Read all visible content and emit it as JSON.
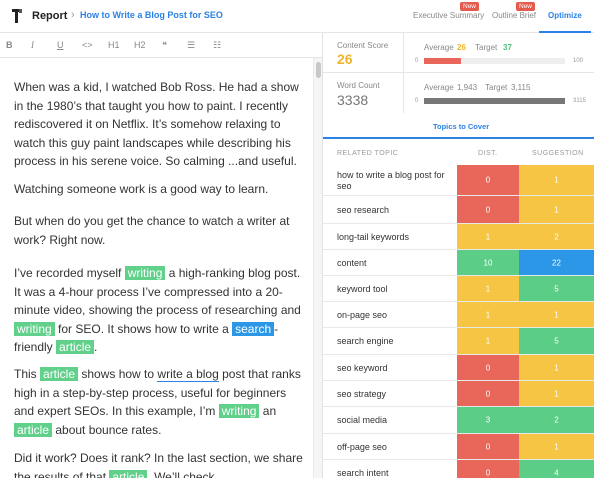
{
  "header": {
    "title": "Report",
    "document_title": "How to Write a Blog Post for SEO",
    "tabs": [
      {
        "label": "Executive Summary",
        "badge": "New"
      },
      {
        "label": "Outline Brief",
        "badge": "New"
      },
      {
        "label": "Optimize",
        "active": true
      }
    ]
  },
  "toolbar": {
    "bold": "B",
    "italic": "I",
    "underline": "U",
    "code": "<>",
    "h1": "H1",
    "h2": "H2",
    "quote": "❝",
    "bullets": "☰",
    "numbers": "☷"
  },
  "editor": {
    "p1": "When was a kid, I watched Bob Ross. He had a show in the 1980’s that taught you how to paint. I recently rediscovered it on Netflix. It’s somehow relaxing to watch this guy paint landscapes while describing his process in his serene voice. So calming ...and useful.",
    "p2": "Watching someone work is a good way to learn.",
    "p3": "But when do you get the chance to watch a writer at work? Right now.",
    "p4": {
      "a": "I’ve recorded myself ",
      "b": "writing",
      "c": " a high-ranking blog post. It was a 4-hour process I’ve compressed into a 20-minute video, showing the process of researching and ",
      "d": "writing",
      "e": " for SEO. It shows how to write a ",
      "f": "search",
      "g": "-friendly ",
      "h": "article",
      "i": "."
    },
    "p5": {
      "a": "This ",
      "b": "article",
      "c": " shows how to ",
      "d": "write a blog",
      "e": " post that ranks high in a step-by-step process, useful for beginners and expert SEOs. In this example, I’m ",
      "f": "writing",
      "g": " an ",
      "h": "article",
      "i": " about bounce rates."
    },
    "p6": {
      "a": "Did it work? Does it rank? In the last section, we share the results of that ",
      "b": "article",
      "c": ". We’ll check"
    }
  },
  "metrics": {
    "content_score": {
      "label": "Content Score",
      "value": "26",
      "average_label": "Average",
      "average": "26",
      "target_label": "Target",
      "target": "37",
      "min": "0",
      "max": "100",
      "fraction": 0.26
    },
    "word_count": {
      "label": "Word Count",
      "value": "3338",
      "average_label": "Average",
      "average": "1,943",
      "target_label": "Target",
      "target": "3,115",
      "min": "0",
      "max": "3115",
      "fraction": 1.0
    }
  },
  "cover_tab": "Topics to Cover",
  "table": {
    "headers": {
      "topic": "RELATED TOPIC",
      "dist": "DIST.",
      "suggestion": "SUGGESTION"
    },
    "rows": [
      {
        "topic": "how to write a blog post for seo",
        "dist": "0",
        "dist_color": "#e8675a",
        "suggestion": "1",
        "sugg_color": "#f7c544"
      },
      {
        "topic": "seo research",
        "dist": "0",
        "dist_color": "#e8675a",
        "suggestion": "1",
        "sugg_color": "#f7c544"
      },
      {
        "topic": "long-tail keywords",
        "dist": "1",
        "dist_color": "#f7c544",
        "suggestion": "2",
        "sugg_color": "#f7c544"
      },
      {
        "topic": "content",
        "dist": "10",
        "dist_color": "#5ccd86",
        "suggestion": "22",
        "sugg_color": "#2b97e6"
      },
      {
        "topic": "keyword tool",
        "dist": "1",
        "dist_color": "#f7c544",
        "suggestion": "5",
        "sugg_color": "#5ccd86"
      },
      {
        "topic": "on-page seo",
        "dist": "1",
        "dist_color": "#f7c544",
        "suggestion": "1",
        "sugg_color": "#f7c544"
      },
      {
        "topic": "search engine",
        "dist": "1",
        "dist_color": "#f7c544",
        "suggestion": "5",
        "sugg_color": "#5ccd86"
      },
      {
        "topic": "seo keyword",
        "dist": "0",
        "dist_color": "#e8675a",
        "suggestion": "1",
        "sugg_color": "#f7c544"
      },
      {
        "topic": "seo strategy",
        "dist": "0",
        "dist_color": "#e8675a",
        "suggestion": "1",
        "sugg_color": "#f7c544"
      },
      {
        "topic": "social media",
        "dist": "3",
        "dist_color": "#5ccd86",
        "suggestion": "2",
        "sugg_color": "#5ccd86"
      },
      {
        "topic": "off-page seo",
        "dist": "0",
        "dist_color": "#e8675a",
        "suggestion": "1",
        "sugg_color": "#f7c544"
      },
      {
        "topic": "search intent",
        "dist": "0",
        "dist_color": "#e8675a",
        "suggestion": "4",
        "sugg_color": "#5ccd86"
      }
    ]
  },
  "colors": {
    "accent": "#2b82e6",
    "highlight": "#61d08b",
    "score_avg": "#f7c544",
    "score_target": "#5ccd86",
    "score_bar": "#e8675a",
    "word_bar": "#777777"
  }
}
